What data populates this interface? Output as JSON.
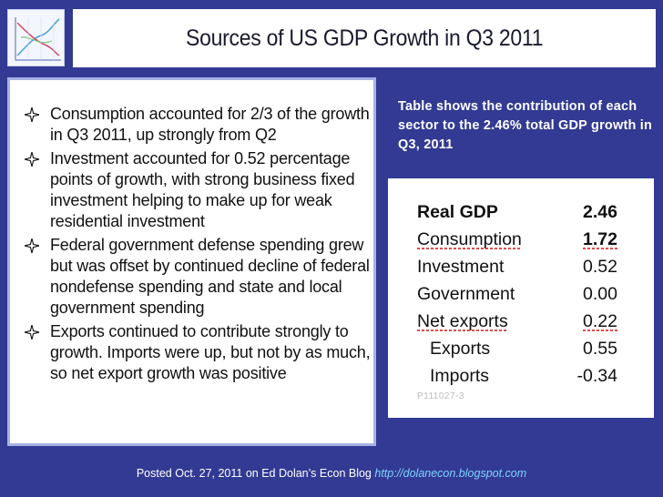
{
  "title": "Sources of US GDP Growth in Q3 2011",
  "bullets": [
    "Consumption accounted for 2/3 of the growth in Q3 2011, up strongly from Q2",
    "Investment accounted for 0.52 percentage points of growth, with strong business fixed investment helping to make up for weak residential investment",
    "Federal government defense spending grew but was offset by continued decline of federal nondefense spending and state and local government spending",
    "Exports continued to contribute strongly to growth. Imports were up, but not by as much, so net export growth was positive"
  ],
  "caption": "Table shows the contribution of each sector to the 2.46% total GDP growth in Q3, 2011",
  "table": {
    "rows": [
      {
        "label": "Real GDP",
        "value": "2.46"
      },
      {
        "label": "Consumption",
        "value": "1.72"
      },
      {
        "label": "Investment",
        "value": "0.52"
      },
      {
        "label": "Government",
        "value": "0.00"
      },
      {
        "label": "Net exports",
        "value": "0.22"
      },
      {
        "label": "Exports",
        "value": "0.55"
      },
      {
        "label": "Imports",
        "value": "-0.34"
      }
    ],
    "id_label": "P111027-3"
  },
  "footer": {
    "text": "Posted Oct. 27, 2011 on Ed Dolan’s Econ Blog",
    "link": "http://dolanecon.blogspot.com"
  },
  "colors": {
    "background": "#323a93",
    "panel_border": "#a7b3e4",
    "link": "#7fd3ff"
  }
}
